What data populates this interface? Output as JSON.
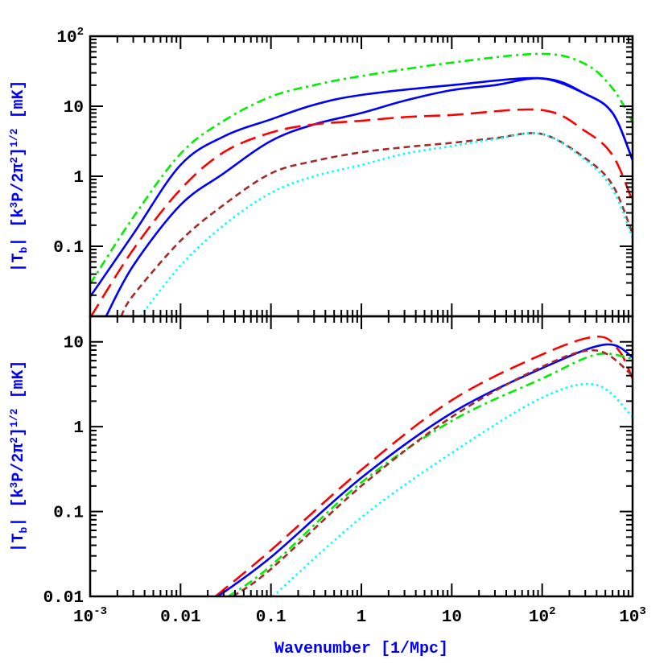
{
  "chart_data": [
    {
      "type": "line",
      "panel": "top",
      "xscale": "log",
      "yscale": "log",
      "xlim": [
        0.001,
        1000
      ],
      "ylim": [
        0.01,
        100
      ],
      "xlabel": "",
      "ylabel": "|T_b| [k³P/2π²]^1/2 [mK]",
      "ylabel_parts": {
        "main": "|T",
        "sub": "b",
        "mid": "| [k",
        "sup1": "3",
        "mid2": "P/2π",
        "sup2": "2",
        "mid3": "]",
        "sup3": "1/2",
        "end": " [mK]"
      },
      "xticks": [
        "10^-3",
        "0.01",
        "0.1",
        "1",
        "10",
        "10^2",
        "10^3"
      ],
      "yticks": [
        "0.1",
        "1",
        "10",
        "10^2"
      ],
      "grid": false,
      "series": [
        {
          "color": "#00ee00",
          "style": "dash-dot",
          "x": [
            0.001,
            0.003,
            0.01,
            0.03,
            0.1,
            0.3,
            1,
            10,
            100,
            300,
            600,
            1000
          ],
          "y": [
            0.029,
            0.26,
            2.1,
            6.2,
            13.7,
            20,
            27,
            42,
            56,
            40,
            18,
            6
          ]
        },
        {
          "color": "#0000ff",
          "style": "solid",
          "x": [
            0.001,
            0.003,
            0.01,
            0.03,
            0.1,
            0.3,
            1,
            10,
            100,
            300,
            600,
            1000
          ],
          "y": [
            0.019,
            0.15,
            1.45,
            3.7,
            6.5,
            10.5,
            14.5,
            20,
            25,
            15,
            8,
            1.7
          ]
        },
        {
          "color": "#0000ff",
          "style": "solid",
          "x": [
            0.0015,
            0.003,
            0.01,
            0.03,
            0.1,
            0.3,
            1,
            3,
            10,
            30,
            100,
            300,
            600,
            1000
          ],
          "y": [
            0.01,
            0.053,
            0.39,
            1.1,
            3.2,
            5.5,
            8,
            12,
            17,
            20,
            25,
            15,
            8,
            1.7
          ]
        },
        {
          "color": "#ff0000",
          "style": "long-dash",
          "x": [
            0.001,
            0.003,
            0.01,
            0.03,
            0.1,
            0.3,
            1,
            3,
            10,
            100,
            300,
            600,
            1000
          ],
          "y": [
            0.0095,
            0.09,
            0.65,
            2.2,
            4.2,
            5.5,
            6.2,
            7,
            7.5,
            8.8,
            4.4,
            2,
            0.44
          ]
        },
        {
          "color": "#a52a2a",
          "style": "short-dash",
          "x": [
            0.0022,
            0.003,
            0.01,
            0.03,
            0.1,
            0.3,
            1,
            3,
            10,
            30,
            100,
            300,
            600,
            1000
          ],
          "y": [
            0.01,
            0.02,
            0.12,
            0.39,
            1.1,
            1.65,
            2.2,
            2.6,
            3,
            3.5,
            4,
            1.8,
            0.75,
            0.15
          ]
        },
        {
          "color": "#00ffff",
          "style": "dotted",
          "x": [
            0.0036,
            0.01,
            0.03,
            0.1,
            0.3,
            1,
            3,
            10,
            30,
            100,
            300,
            600,
            1000
          ],
          "y": [
            0.01,
            0.053,
            0.2,
            0.58,
            1.0,
            1.45,
            2.1,
            2.7,
            3.4,
            4,
            1.7,
            0.65,
            0.13
          ]
        }
      ]
    },
    {
      "type": "line",
      "panel": "bottom",
      "xscale": "log",
      "yscale": "log",
      "xlim": [
        0.001,
        1000
      ],
      "ylim": [
        0.01,
        20
      ],
      "xlabel": "Wavenumber [1/Mpc]",
      "ylabel": "|T_b| [k³P/2π²]^1/2 [mK]",
      "xticks": [
        "10^-3",
        "0.01",
        "0.1",
        "1",
        "10",
        "10^2",
        "10^3"
      ],
      "yticks": [
        "0.01",
        "0.1",
        "1",
        "10"
      ],
      "grid": false,
      "series": [
        {
          "color": "#ff0000",
          "style": "long-dash",
          "x": [
            0.0244,
            0.1,
            1,
            10,
            100,
            400,
            700,
            1000
          ],
          "y": [
            0.01,
            0.035,
            0.31,
            2.05,
            7.1,
            11.5,
            8,
            3.7
          ]
        },
        {
          "color": "#0000ff",
          "style": "solid",
          "x": [
            0.026,
            0.1,
            1,
            10,
            100,
            500,
            1000
          ],
          "y": [
            0.01,
            0.029,
            0.25,
            1.45,
            4.9,
            9.3,
            6.6
          ]
        },
        {
          "color": "#00ee00",
          "style": "dash-dot",
          "x": [
            0.034,
            0.1,
            1,
            10,
            100,
            400,
            1000
          ],
          "y": [
            0.01,
            0.023,
            0.22,
            1.17,
            3.7,
            7.1,
            6.3
          ]
        },
        {
          "color": "#a52a2a",
          "style": "short-dash",
          "x": [
            0.038,
            0.1,
            1,
            10,
            100,
            400,
            1000
          ],
          "y": [
            0.01,
            0.021,
            0.2,
            1.3,
            5.1,
            7.9,
            4
          ]
        },
        {
          "color": "#00ffff",
          "style": "dotted",
          "x": [
            0.105,
            1,
            10,
            100,
            400,
            1000
          ],
          "y": [
            0.01,
            0.085,
            0.49,
            2.2,
            3.1,
            1.3
          ]
        }
      ]
    }
  ]
}
